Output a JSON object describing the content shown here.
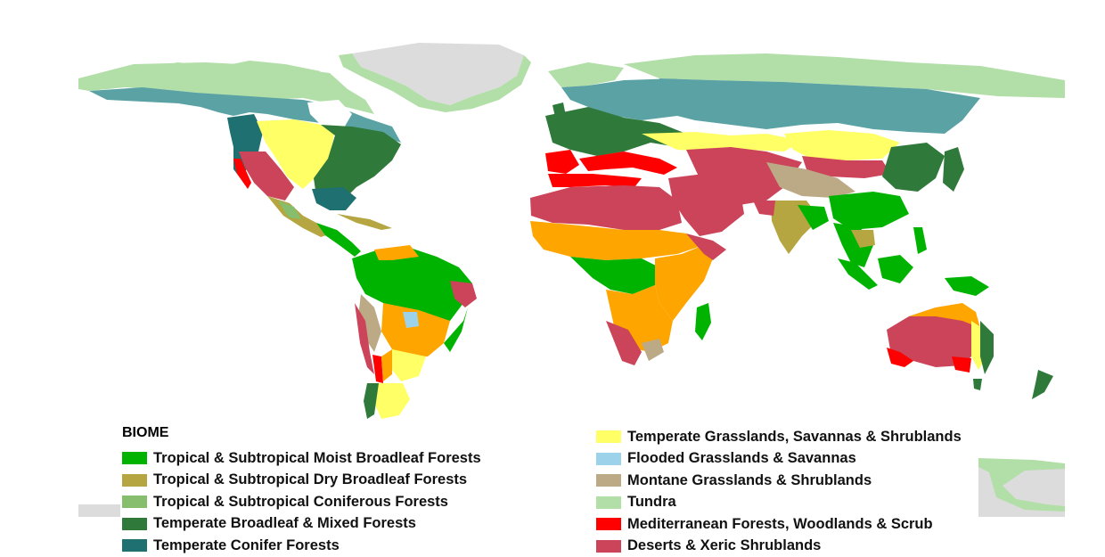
{
  "legend": {
    "title": "BIOME",
    "left": [
      {
        "label": "Tropical & Subtropical Moist Broadleaf Forests",
        "color": "#00b300",
        "key": "tropical-moist"
      },
      {
        "label": "Tropical & Subtropical Dry Broadleaf Forests",
        "color": "#b5a642",
        "key": "tropical-dry"
      },
      {
        "label": "Tropical & Subtropical Coniferous Forests",
        "color": "#86be6e",
        "key": "tropical-conifer"
      },
      {
        "label": "Temperate Broadleaf & Mixed Forests",
        "color": "#2f7a3a",
        "key": "temperate-broadleaf"
      },
      {
        "label": "Temperate Conifer Forests",
        "color": "#1e7071",
        "key": "temperate-conifer"
      }
    ],
    "right": [
      {
        "label": "Temperate Grasslands, Savannas & Shrublands",
        "color": "#ffff66",
        "key": "temperate-grass"
      },
      {
        "label": "Flooded Grasslands & Savannas",
        "color": "#9dd3ea",
        "key": "flooded"
      },
      {
        "label": "Montane Grasslands & Shrublands",
        "color": "#bca986",
        "key": "montane"
      },
      {
        "label": "Tundra",
        "color": "#b2dea8",
        "key": "tundra"
      },
      {
        "label": "Mediterranean Forests, Woodlands & Scrub",
        "color": "#ff0000",
        "key": "mediterranean"
      },
      {
        "label": "Deserts & Xeric Shrublands",
        "color": "#cc4459",
        "key": "desert"
      }
    ]
  },
  "colors": {
    "ice": "#dcdcdc",
    "boreal": "#5ba2a5",
    "tropical_grass": "#ffa500",
    "background": "#ffffff"
  }
}
